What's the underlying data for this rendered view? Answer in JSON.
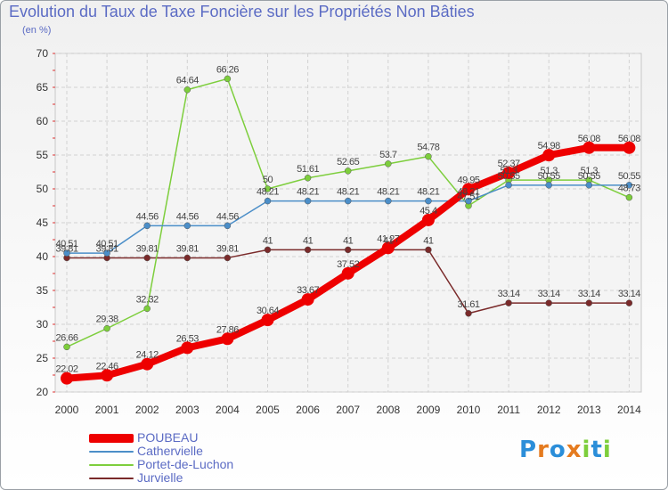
{
  "chart_data": {
    "type": "line",
    "title": "Evolution du Taux de Taxe Foncière sur les Propriétés Non Bâties",
    "subtitle": "(en %)",
    "xlabel": "",
    "ylabel": "(en %)",
    "x": [
      "2000",
      "2001",
      "2002",
      "2003",
      "2004",
      "2005",
      "2006",
      "2007",
      "2008",
      "2009",
      "2010",
      "2011",
      "2012",
      "2013",
      "2014"
    ],
    "ylim": [
      20,
      70
    ],
    "yticks": [
      20,
      25,
      30,
      35,
      40,
      45,
      50,
      55,
      60,
      65,
      70
    ],
    "grid": true,
    "legend_position": "bottom-left",
    "series": [
      {
        "name": "POUBEAU",
        "color": "#ee0000",
        "values": [
          22.02,
          22.46,
          24.12,
          26.53,
          27.86,
          30.64,
          33.67,
          37.52,
          41.27,
          45.4,
          49.95,
          52.37,
          54.98,
          56.08,
          56.08
        ],
        "labels": [
          "22.02",
          "22.46",
          "24.12",
          "26.53",
          "27.86",
          "30.64",
          "33.67",
          "37.52",
          "41.27",
          "45.4",
          "49.95",
          "52.37",
          "54.98",
          "56.08",
          "56.08"
        ]
      },
      {
        "name": "Cathervielle",
        "color": "#4b8ec8",
        "values": [
          40.51,
          40.51,
          44.56,
          44.56,
          44.56,
          48.21,
          48.21,
          48.21,
          48.21,
          48.21,
          48.21,
          50.55,
          50.55,
          50.55,
          50.55
        ],
        "labels": [
          "40.51",
          "40.51",
          "44.56",
          "44.56",
          "44.56",
          "48.21",
          "48.21",
          "48.21",
          "48.21",
          "48.21",
          "48.21",
          "50.55",
          "50.55",
          "50.55",
          "50.55"
        ]
      },
      {
        "name": "Portet-de-Luchon",
        "color": "#7dce3c",
        "values": [
          26.66,
          29.38,
          32.32,
          64.64,
          66.26,
          50,
          51.61,
          52.65,
          53.7,
          54.78,
          47.51,
          51.3,
          51.3,
          51.3,
          48.73
        ],
        "labels": [
          "26.66",
          "29.38",
          "32.32",
          "64.64",
          "66.26",
          "50",
          "51.61",
          "52.65",
          "53.7",
          "54.78",
          "47.51",
          "51.3",
          "51.3",
          "51.3",
          "48.73"
        ]
      },
      {
        "name": "Jurvielle",
        "color": "#7a2a2a",
        "values": [
          39.81,
          39.81,
          39.81,
          39.81,
          39.81,
          41,
          41,
          41,
          41,
          41,
          31.61,
          33.14,
          33.14,
          33.14,
          33.14
        ],
        "labels": [
          "39.81",
          "39.81",
          "39.81",
          "39.81",
          "39.81",
          "41",
          "41",
          "41",
          "41",
          "41",
          "31.61",
          "33.14",
          "33.14",
          "33.14",
          "33.14"
        ]
      }
    ]
  },
  "logo": {
    "text": "Proxiti",
    "letter_colors": [
      "#2b8ed9",
      "#e57b1f",
      "#2b8ed9",
      "#e57b1f",
      "#7dce3c",
      "#2b8ed9",
      "#7dce3c"
    ]
  }
}
